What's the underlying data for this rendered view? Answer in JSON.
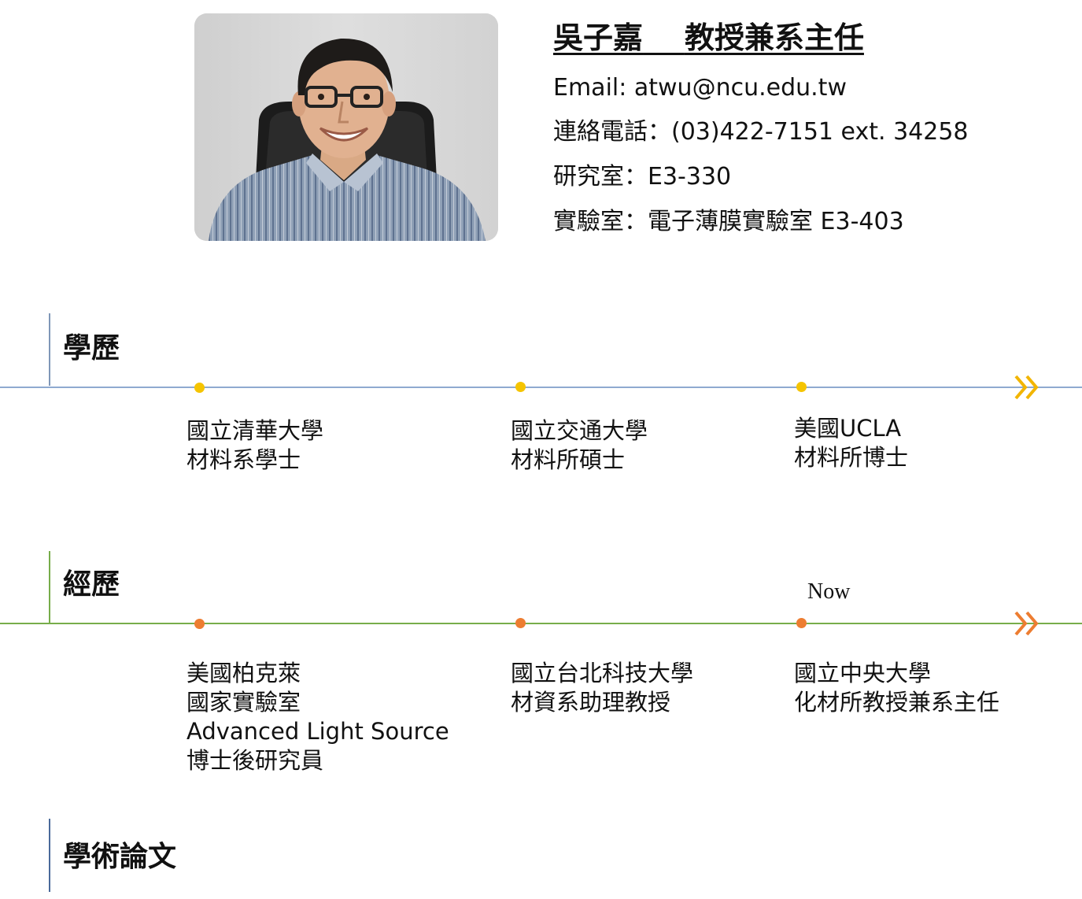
{
  "profile": {
    "photo_alt": "professor-portrait",
    "name": "吳子嘉",
    "title": "教授兼系主任",
    "email": "Email: atwu@ncu.edu.tw",
    "phone": "連絡電話：(03)422-7151 ext. 34258",
    "office": "研究室：E3-330",
    "lab": "實驗室：電子薄膜實驗室 E3-403"
  },
  "education": {
    "heading": "學歷",
    "color": "#8FAAD0",
    "bar_color": "#7F97B8",
    "dot_color": "#F5C400",
    "chevron_color": "#F2B500",
    "items": [
      {
        "line1": "國立清華大學",
        "line2": "材料系學士"
      },
      {
        "line1": "國立交通大學",
        "line2": "材料所碩士"
      },
      {
        "line1": "美國UCLA",
        "line2": "材料所博士"
      }
    ]
  },
  "experience": {
    "heading": "經歷",
    "color": "#77AD4A",
    "bar_color": "#77AD4A",
    "dot_color": "#ED7D31",
    "chevron_color": "#ED7D31",
    "now_label": "Now",
    "items": [
      {
        "line1": "美國柏克萊",
        "line2": "國家實驗室",
        "line3": "Advanced Light Source",
        "line4": "博士後研究員"
      },
      {
        "line1": "國立台北科技大學",
        "line2": "材資系助理教授"
      },
      {
        "line1": "國立中央大學",
        "line2": "化材所教授兼系主任"
      }
    ]
  },
  "publications": {
    "heading": "學術論文",
    "bar_color": "#4A6A9A"
  }
}
